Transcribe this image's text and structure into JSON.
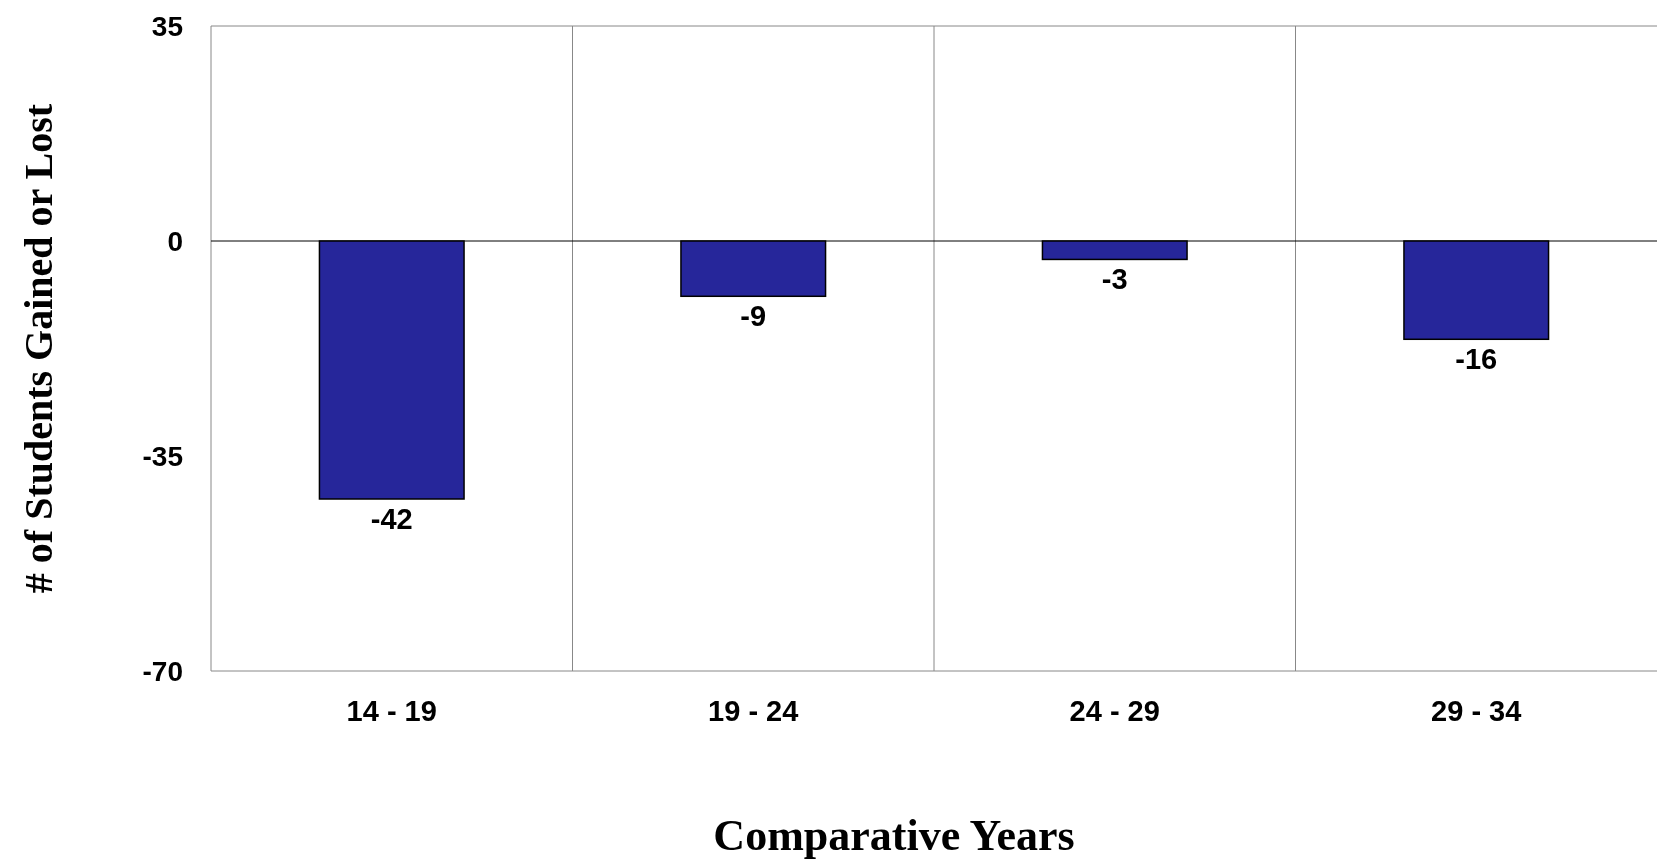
{
  "chart_data": {
    "type": "bar",
    "xlabel": "Comparative Years",
    "ylabel": "# of Students Gained or Lost",
    "categories": [
      "14 - 19",
      "19 - 24",
      "24 - 29",
      "29 - 34"
    ],
    "values": [
      -42,
      -9,
      -3,
      -16
    ],
    "color": "#26269a",
    "ylim": [
      -70,
      35
    ],
    "yticks": [
      35,
      0,
      -35,
      -70
    ],
    "grid": "x",
    "data_labels": true
  }
}
